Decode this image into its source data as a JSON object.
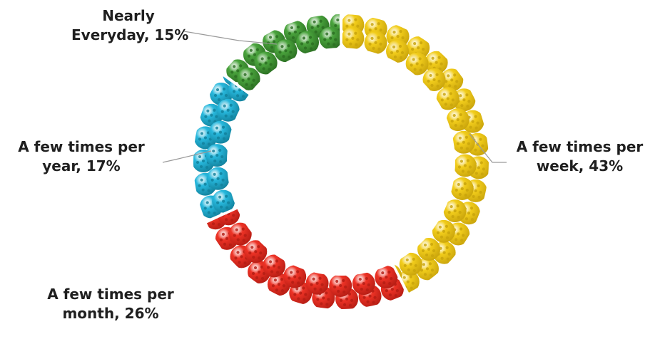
{
  "chart_data": {
    "type": "pie",
    "style": "donut",
    "slices": [
      {
        "label_line1": "A few times per",
        "label_line2": "week, 43%",
        "value": 43,
        "color": "#f2cd1b",
        "hole_color": "#c9a40c"
      },
      {
        "label_line1": "A few times per",
        "label_line2": "month, 26%",
        "value": 26,
        "color": "#ee3326",
        "hole_color": "#b51d14"
      },
      {
        "label_line1": "A few times per",
        "label_line2": "year, 17%",
        "value": 17,
        "color": "#27b8dd",
        "hole_color": "#12819c"
      },
      {
        "label_line1": "Nearly",
        "label_line2": "Everyday, 15%",
        "value": 15,
        "color": "#4aa43d",
        "hole_color": "#2b6e22"
      }
    ],
    "start_angle_deg": 0,
    "direction": "clockwise",
    "legend": "none",
    "label_placement": "outside with leader lines",
    "marker_icon": "pickleball-icon"
  }
}
